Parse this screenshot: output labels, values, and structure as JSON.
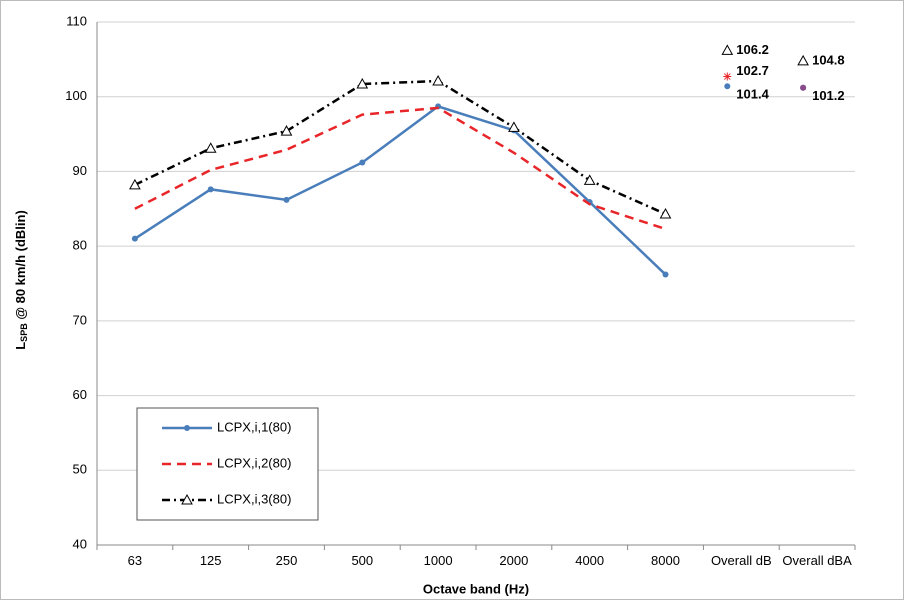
{
  "chart_data": {
    "type": "line",
    "ylabel_main": "L",
    "ylabel_sub": "SPB",
    "ylabel_rest": " @ 80 km/h (dBlin)",
    "xlabel": "Octave band (Hz)",
    "categories": [
      "63",
      "125",
      "250",
      "500",
      "1000",
      "2000",
      "4000",
      "8000"
    ],
    "overall_categories": [
      "Overall dB",
      "Overall dBA"
    ],
    "series": [
      {
        "name": "LCPX,i,1(80)",
        "color": "#4a7ebb",
        "dash": "none",
        "marker": "dot",
        "values": [
          81,
          87.6,
          86.2,
          91.2,
          98.7,
          95.5,
          85.9,
          76.2
        ],
        "overall": [
          101.4,
          101.2
        ],
        "value_labels": [
          "101.4",
          "101.2"
        ]
      },
      {
        "name": "LCPX,i,2(80)",
        "color": "#e8262a",
        "dash": "9 6",
        "marker": "asterisk",
        "values": [
          85,
          90.2,
          92.9,
          97.6,
          98.5,
          92.5,
          85.6,
          82.3
        ],
        "overall": [
          102.7,
          101.2
        ],
        "value_labels": [
          "102.7",
          null
        ]
      },
      {
        "name": "LCPX,i,3(80)",
        "color": "#000000",
        "dash": "8 4 2 4",
        "marker": "triangle",
        "values": [
          88.2,
          93.1,
          95.4,
          101.7,
          102.1,
          95.9,
          88.8,
          84.3
        ],
        "overall": [
          106.2,
          104.8
        ],
        "value_labels": [
          "106.2",
          "104.8"
        ]
      }
    ],
    "ylim": [
      40,
      110
    ],
    "yticks": [
      40,
      50,
      60,
      70,
      80,
      90,
      100,
      110
    ],
    "grid": true,
    "legend": "lower left"
  }
}
